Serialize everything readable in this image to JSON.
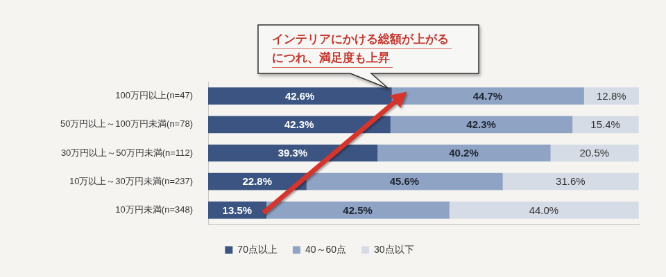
{
  "chart_data": {
    "type": "bar",
    "orientation": "horizontal",
    "stacked": true,
    "data_labels": true,
    "tick_labels": "y",
    "grid": false,
    "legend": "bottom",
    "annotation": [
      "インテリアにかける総額が上がる",
      "につれ、満足度も上昇"
    ],
    "categories": [
      "100万円以上(n=47)",
      "50万円以上～100万円未満(n=78)",
      "30万円以上～50万円未満(n=112)",
      "10万以上～30万円未満(n=237)",
      "10万円未満(n=348)"
    ],
    "xlim": [
      0,
      100.1
    ],
    "xticks": [],
    "series": [
      {
        "name": "70点以上",
        "color": "#3b5482",
        "values": [
          42.6,
          42.3,
          39.3,
          22.8,
          13.5
        ],
        "value_labels": [
          "42.6%",
          "42.3%",
          "39.3%",
          "22.8%",
          "13.5%"
        ]
      },
      {
        "name": "40～60点",
        "color": "#8fa3c4",
        "values": [
          44.7,
          42.3,
          40.2,
          45.6,
          42.5
        ],
        "value_labels": [
          "44.7%",
          "42.3%",
          "40.2%",
          "45.6%",
          "42.5%"
        ]
      },
      {
        "name": "30点以下",
        "color": "#d6dce6",
        "values": [
          12.8,
          15.4,
          20.5,
          31.6,
          44.0
        ],
        "value_labels": [
          "12.8%",
          "15.4%",
          "20.5%",
          "31.6%",
          "44.0%"
        ]
      }
    ]
  }
}
